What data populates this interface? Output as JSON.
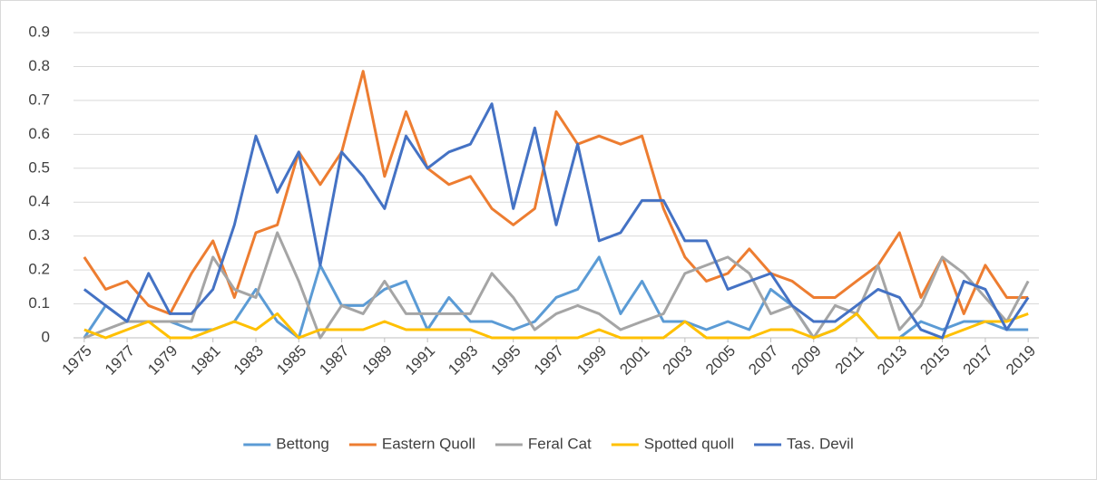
{
  "chart_data": {
    "type": "line",
    "x": [
      1975,
      1976,
      1977,
      1978,
      1979,
      1980,
      1981,
      1982,
      1983,
      1984,
      1985,
      1986,
      1987,
      1988,
      1989,
      1990,
      1991,
      1992,
      1993,
      1994,
      1995,
      1996,
      1997,
      1998,
      1999,
      2000,
      2001,
      2002,
      2003,
      2004,
      2005,
      2006,
      2007,
      2008,
      2009,
      2010,
      2011,
      2012,
      2013,
      2014,
      2015,
      2016,
      2017,
      2018,
      2019
    ],
    "xlim": [
      1974.5,
      2019.5
    ],
    "xticks": [
      1975,
      1977,
      1979,
      1981,
      1983,
      1985,
      1987,
      1989,
      1991,
      1993,
      1995,
      1997,
      1999,
      2001,
      2003,
      2005,
      2007,
      2009,
      2011,
      2013,
      2015,
      2017,
      2019
    ],
    "ylim": [
      0,
      0.9
    ],
    "yticks": [
      0,
      0.1,
      0.2,
      0.3,
      0.4,
      0.5,
      0.6,
      0.7,
      0.8,
      0.9
    ],
    "grid": true,
    "legend": "bottom",
    "series": [
      {
        "name": "Bettong",
        "color": "#5b9bd5",
        "values": [
          0,
          0.095,
          0.048,
          0.048,
          0.048,
          0.024,
          0.024,
          0.048,
          0.143,
          0.048,
          0,
          0.214,
          0.095,
          0.095,
          0.143,
          0.167,
          0.024,
          0.119,
          0.048,
          0.048,
          0.024,
          0.048,
          0.119,
          0.143,
          0.238,
          0.071,
          0.167,
          0.048,
          0.048,
          0.024,
          0.048,
          0.024,
          0.143,
          0.095,
          0,
          0.024,
          0.071,
          0,
          0,
          0.048,
          0.024,
          0.048,
          0.048,
          0.024,
          0.024
        ]
      },
      {
        "name": "Eastern Quoll",
        "color": "#ed7d31",
        "values": [
          0.238,
          0.143,
          0.167,
          0.095,
          0.071,
          0.19,
          0.286,
          0.119,
          0.31,
          0.333,
          0.548,
          0.452,
          0.548,
          0.786,
          0.476,
          0.667,
          0.5,
          0.452,
          0.476,
          0.381,
          0.333,
          0.381,
          0.667,
          0.571,
          0.595,
          0.571,
          0.595,
          0.381,
          0.238,
          0.167,
          0.19,
          0.262,
          0.19,
          0.167,
          0.119,
          0.119,
          0.167,
          0.214,
          0.31,
          0.119,
          0.238,
          0.071,
          0.214,
          0.119,
          0.119
        ]
      },
      {
        "name": "Feral Cat",
        "color": "#a5a5a5",
        "values": [
          0,
          0.024,
          0.048,
          0.048,
          0.048,
          0.048,
          0.238,
          0.143,
          0.119,
          0.31,
          0.167,
          0,
          0.095,
          0.071,
          0.167,
          0.071,
          0.071,
          0.071,
          0.071,
          0.19,
          0.119,
          0.024,
          0.071,
          0.095,
          0.071,
          0.024,
          0.048,
          0.071,
          0.19,
          0.214,
          0.238,
          0.19,
          0.071,
          0.095,
          0,
          0.095,
          0.071,
          0.214,
          0.024,
          0.095,
          0.238,
          0.19,
          0.119,
          0.048,
          0.167
        ]
      },
      {
        "name": "Spotted quoll",
        "color": "#ffc000",
        "values": [
          0.024,
          0,
          0.024,
          0.048,
          0,
          0,
          0.024,
          0.048,
          0.024,
          0.071,
          0,
          0.024,
          0.024,
          0.024,
          0.048,
          0.024,
          0.024,
          0.024,
          0.024,
          0,
          0,
          0,
          0,
          0,
          0.024,
          0,
          0,
          0,
          0.048,
          0,
          0,
          0,
          0.024,
          0.024,
          0,
          0.024,
          0.071,
          0,
          0,
          0,
          0,
          0.024,
          0.048,
          0.048,
          0.071
        ]
      },
      {
        "name": "Tas. Devil",
        "color": "#4472c4",
        "values": [
          0.143,
          0.095,
          0.048,
          0.19,
          0.071,
          0.071,
          0.143,
          0.333,
          0.595,
          0.429,
          0.548,
          0.214,
          0.548,
          0.476,
          0.381,
          0.595,
          0.5,
          0.548,
          0.571,
          0.69,
          0.381,
          0.619,
          0.333,
          0.571,
          0.286,
          0.31,
          0.405,
          0.405,
          0.286,
          0.286,
          0.143,
          0.167,
          0.19,
          0.095,
          0.048,
          0.048,
          0.095,
          0.143,
          0.119,
          0.024,
          0,
          0.167,
          0.143,
          0.024,
          0.119
        ]
      }
    ]
  }
}
